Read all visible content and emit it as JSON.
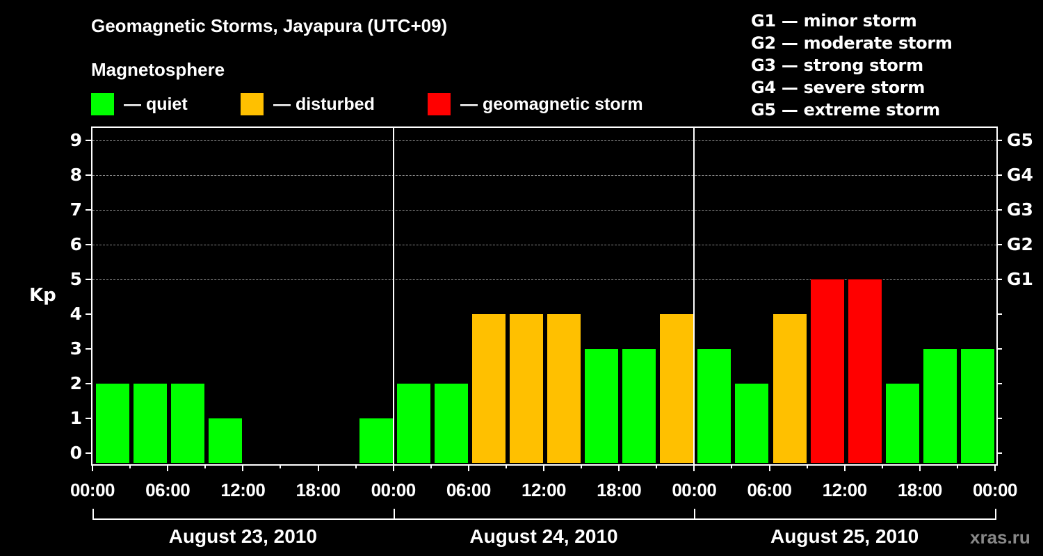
{
  "header": {
    "title": "Geomagnetic Storms, Jayapura (UTC+09)",
    "subtitle": "Magnetosphere"
  },
  "legend": {
    "items": [
      {
        "label": "— quiet",
        "color": "#00ff00"
      },
      {
        "label": "— disturbed",
        "color": "#ffc000"
      },
      {
        "label": "— geomagnetic storm",
        "color": "#ff0000"
      }
    ]
  },
  "g_scale_legend": [
    "G1 — minor storm",
    "G2 — moderate storm",
    "G3 — strong storm",
    "G4 — severe storm",
    "G5 — extreme storm"
  ],
  "axes": {
    "y_title": "Kp",
    "y_ticks": [
      "0",
      "1",
      "2",
      "3",
      "4",
      "5",
      "6",
      "7",
      "8",
      "9"
    ],
    "g_ticks": [
      {
        "label": "G1",
        "kp": 5
      },
      {
        "label": "G2",
        "kp": 6
      },
      {
        "label": "G3",
        "kp": 7
      },
      {
        "label": "G4",
        "kp": 8
      },
      {
        "label": "G5",
        "kp": 9
      }
    ],
    "x_ticks": [
      "00:00",
      "06:00",
      "12:00",
      "18:00",
      "00:00",
      "06:00",
      "12:00",
      "18:00",
      "00:00",
      "06:00",
      "12:00",
      "18:00",
      "00:00"
    ],
    "days": [
      "August 23, 2010",
      "August 24, 2010",
      "August 25, 2010"
    ]
  },
  "watermark": "xras.ru",
  "colors": {
    "quiet": "#00ff00",
    "disturbed": "#ffc000",
    "storm": "#ff0000",
    "background": "#000000",
    "grid": "#888888"
  },
  "chart_data": {
    "type": "bar",
    "title": "Geomagnetic Storms, Jayapura (UTC+09)",
    "subtitle": "Magnetosphere",
    "xlabel": "",
    "ylabel": "Kp",
    "ylim": [
      0,
      9
    ],
    "grid": "dashed horizontal at Kp 5-9",
    "legend_position": "top",
    "categories": [
      "Aug 23 00:00",
      "Aug 23 03:00",
      "Aug 23 06:00",
      "Aug 23 09:00",
      "Aug 23 12:00",
      "Aug 23 15:00",
      "Aug 23 18:00",
      "Aug 23 21:00",
      "Aug 24 00:00",
      "Aug 24 03:00",
      "Aug 24 06:00",
      "Aug 24 09:00",
      "Aug 24 12:00",
      "Aug 24 15:00",
      "Aug 24 18:00",
      "Aug 24 21:00",
      "Aug 25 00:00",
      "Aug 25 03:00",
      "Aug 25 06:00",
      "Aug 25 09:00",
      "Aug 25 12:00",
      "Aug 25 15:00",
      "Aug 25 18:00",
      "Aug 25 21:00"
    ],
    "values": [
      2,
      2,
      2,
      1,
      0,
      0,
      0,
      1,
      2,
      2,
      4,
      4,
      4,
      3,
      3,
      4,
      3,
      2,
      4,
      5,
      5,
      2,
      3,
      3
    ],
    "status": [
      "quiet",
      "quiet",
      "quiet",
      "quiet",
      "quiet",
      "quiet",
      "quiet",
      "quiet",
      "quiet",
      "quiet",
      "disturbed",
      "disturbed",
      "disturbed",
      "quiet",
      "quiet",
      "disturbed",
      "quiet",
      "quiet",
      "disturbed",
      "storm",
      "storm",
      "quiet",
      "quiet",
      "quiet"
    ],
    "secondary_axis": {
      "labels": [
        "G1",
        "G2",
        "G3",
        "G4",
        "G5"
      ],
      "kp_values": [
        5,
        6,
        7,
        8,
        9
      ]
    }
  }
}
